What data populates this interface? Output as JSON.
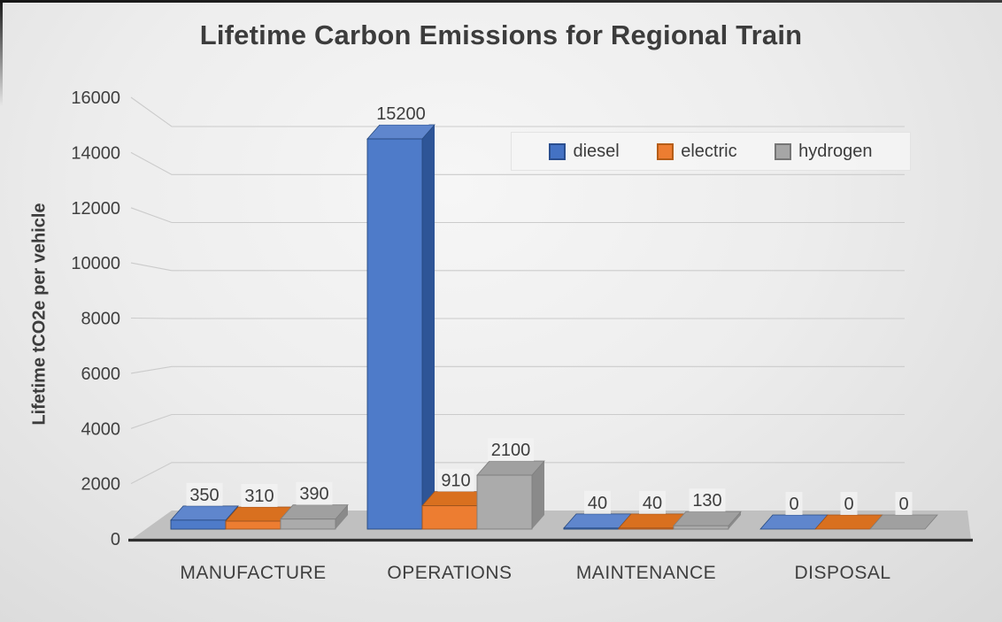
{
  "chart_data": {
    "type": "bar",
    "style": "3d-clustered-column",
    "title": "Lifetime Carbon Emissions for Regional Train",
    "xlabel": "",
    "ylabel": "Lifetime tCO2e per vehicle",
    "categories": [
      "MANUFACTURE",
      "OPERATIONS",
      "MAINTENANCE",
      "DISPOSAL"
    ],
    "series": [
      {
        "name": "diesel",
        "values": [
          350,
          15200,
          40,
          0
        ],
        "color": "#4472C4",
        "face": "#4E7BC9",
        "top": "#5F86CD",
        "side": "#2E5597",
        "edge": "#27497F"
      },
      {
        "name": "electric",
        "values": [
          310,
          910,
          40,
          0
        ],
        "color": "#ED7D31",
        "face": "#ED7D31",
        "top": "#D9701F",
        "side": "#B85E1D",
        "edge": "#9C521D"
      },
      {
        "name": "hydrogen",
        "values": [
          390,
          2100,
          130,
          0
        ],
        "color": "#A6A6A6",
        "face": "#ABABAB",
        "top": "#A0A0A0",
        "side": "#8A8A8A",
        "edge": "#7F7F7F"
      }
    ],
    "ylim": [
      0,
      16000
    ],
    "ytick_step": 2000,
    "yticks": [
      "0",
      "2000",
      "4000",
      "6000",
      "8000",
      "10000",
      "12000",
      "14000",
      "16000"
    ],
    "grid": true,
    "data_labels": true,
    "legend_position": "inside-top-right"
  },
  "legend": {
    "items": [
      {
        "label": "diesel",
        "color": "#4472C4",
        "border": "#2A4E8F"
      },
      {
        "label": "electric",
        "color": "#ED7D31",
        "border": "#B55D17"
      },
      {
        "label": "hydrogen",
        "color": "#A6A6A6",
        "border": "#767676"
      }
    ]
  },
  "colors": {
    "axis_line": "#303030",
    "gridline": "#CBCBCB",
    "floor": "#C0C0C0",
    "text": "#404040",
    "label_chip": "#F2F2F2"
  }
}
